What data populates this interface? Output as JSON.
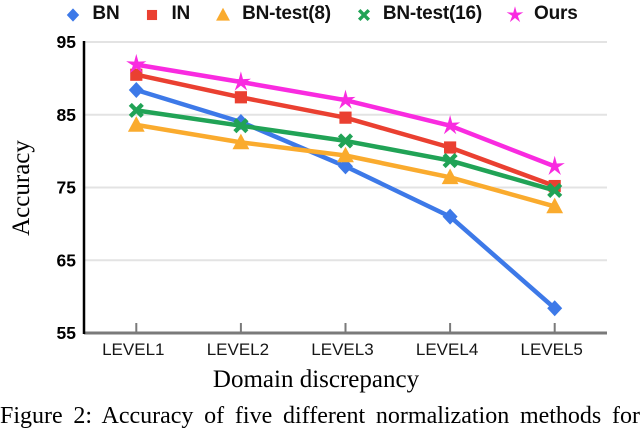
{
  "caption": {
    "text": "Figure 2: Accuracy of five different normalization methods for"
  },
  "chart_data": {
    "type": "line",
    "title": "",
    "xlabel": "Domain discrepancy",
    "ylabel": "Accuracy",
    "categories": [
      "LEVEL1",
      "LEVEL2",
      "LEVEL3",
      "LEVEL4",
      "LEVEL5"
    ],
    "ylim": [
      55,
      95
    ],
    "yticks": [
      95,
      85,
      75,
      65,
      55
    ],
    "grid": true,
    "legend_position": "top",
    "series": [
      {
        "name": "BN",
        "marker": "diamond",
        "color": "#3d79e8",
        "values": [
          88.4,
          84.0,
          77.9,
          71.0,
          58.4
        ]
      },
      {
        "name": "IN",
        "marker": "square",
        "color": "#ea4031",
        "values": [
          90.5,
          87.4,
          84.6,
          80.5,
          75.2
        ]
      },
      {
        "name": "BN-test(8)",
        "marker": "triangle",
        "color": "#faab2e",
        "values": [
          83.6,
          81.2,
          79.4,
          76.4,
          72.4
        ]
      },
      {
        "name": "BN-test(16)",
        "marker": "x",
        "color": "#21a356",
        "values": [
          85.6,
          83.5,
          81.4,
          78.7,
          74.6
        ]
      },
      {
        "name": "Ours",
        "marker": "star",
        "color": "#f92be0",
        "values": [
          91.9,
          89.5,
          87.0,
          83.5,
          77.9
        ]
      }
    ],
    "axis_colors": {
      "grid": "#e3e3e3",
      "x_axis": "#7a7a7a",
      "y_axis": "#000000",
      "tick": "#7a7a7a"
    }
  }
}
